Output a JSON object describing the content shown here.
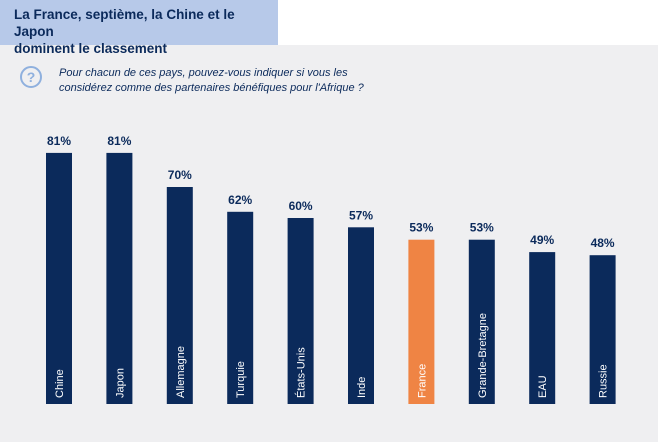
{
  "header": {
    "title_line1": "La France, septième, la Chine et le Japon",
    "title_line2": "dominent le classement"
  },
  "question": {
    "icon": "question-icon",
    "line1": "Pour chacun de ces pays, pouvez-vous indiquer si vous les",
    "line2": "considérez comme des partenaires bénéfiques pour l'Afrique ?"
  },
  "colors": {
    "bar": "#0b2a5b",
    "highlight": "#ef8444",
    "panel": "#efeff1",
    "title_bg": "#b7c9e9"
  },
  "chart_data": {
    "type": "bar",
    "categories": [
      "Chine",
      "Japon",
      "Allemagne",
      "Turquie",
      "États-Unis",
      "Inde",
      "France",
      "Grande-Bretagne",
      "EAU",
      "Russie"
    ],
    "values": [
      81,
      81,
      70,
      62,
      60,
      57,
      53,
      53,
      49,
      48
    ],
    "value_labels": [
      "81%",
      "81%",
      "70%",
      "62%",
      "60%",
      "57%",
      "53%",
      "53%",
      "49%",
      "48%"
    ],
    "highlight_index": 6,
    "ylim": [
      0,
      100
    ],
    "grid": false,
    "title": "",
    "xlabel": "",
    "ylabel": ""
  }
}
